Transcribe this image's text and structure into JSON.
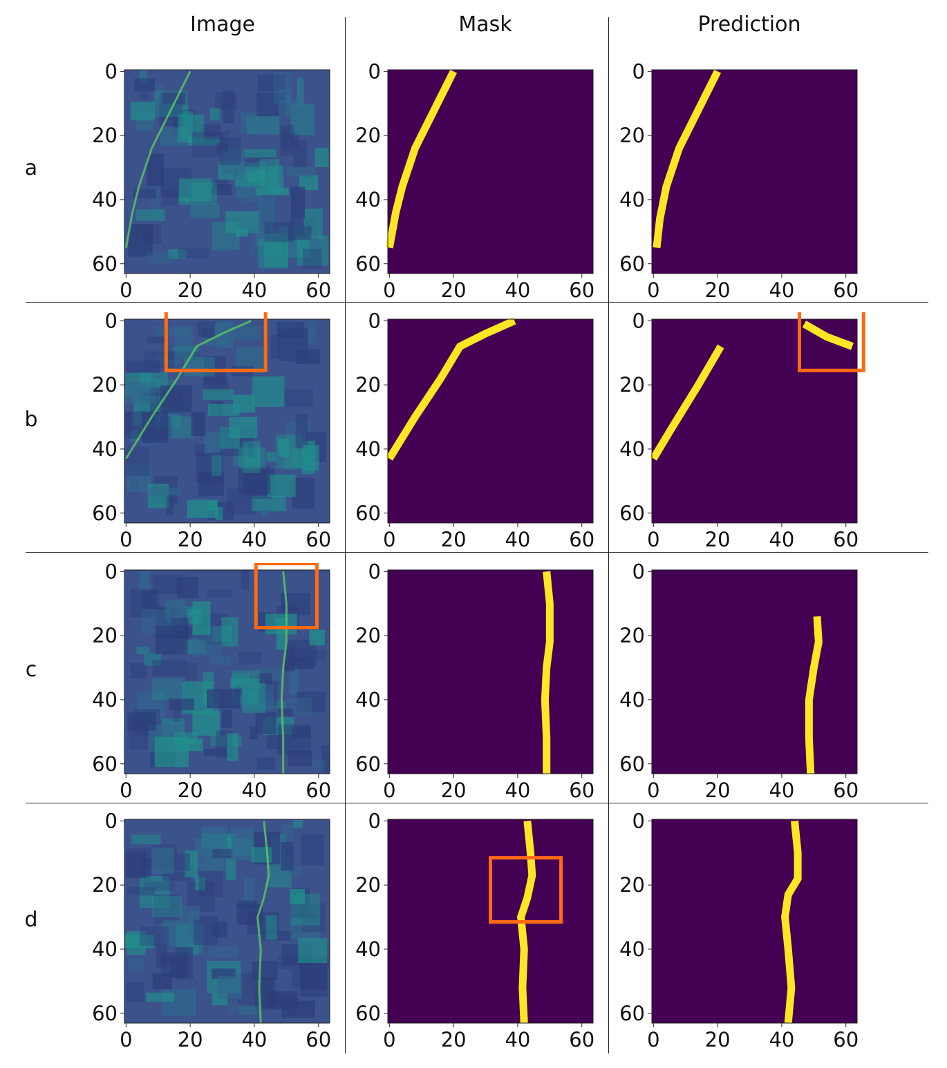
{
  "columns": [
    "Image",
    "Mask",
    "Prediction"
  ],
  "rows": [
    "a",
    "b",
    "c",
    "d"
  ],
  "axis": {
    "range": [
      0,
      63
    ],
    "x_ticks": [
      "0",
      "20",
      "40",
      "60"
    ],
    "y_ticks": [
      "0",
      "20",
      "40",
      "60"
    ]
  },
  "colors": {
    "background_class": "#440154",
    "line_class": "#fde725",
    "highlight_box": "#ff6a13",
    "image_base": "#3b528b",
    "image_mid": "#21918c",
    "image_bright": "#5ec962"
  },
  "highlight_boxes": [
    {
      "row": "b",
      "column": "Image",
      "x": [
        13,
        44
      ],
      "y": [
        -3,
        16
      ]
    },
    {
      "row": "b",
      "column": "Prediction",
      "x": [
        46,
        66
      ],
      "y": [
        -3,
        16
      ]
    },
    {
      "row": "c",
      "column": "Image",
      "x": [
        41,
        60
      ],
      "y": [
        -2,
        18
      ]
    },
    {
      "row": "d",
      "column": "Mask",
      "x": [
        32,
        54
      ],
      "y": [
        12,
        32
      ]
    }
  ],
  "segments": {
    "a": {
      "mask": [
        [
          20,
          0
        ],
        [
          14,
          12
        ],
        [
          8,
          24
        ],
        [
          4,
          36
        ],
        [
          2,
          44
        ],
        [
          0,
          55
        ]
      ],
      "prediction": [
        [
          20,
          0
        ],
        [
          14,
          12
        ],
        [
          8,
          24
        ],
        [
          4,
          36
        ],
        [
          2,
          46
        ],
        [
          1,
          55
        ]
      ]
    },
    "b": {
      "mask": [
        [
          39,
          0
        ],
        [
          30,
          4
        ],
        [
          22,
          8
        ],
        [
          16,
          18
        ],
        [
          8,
          30
        ],
        [
          0,
          43
        ]
      ],
      "prediction_parts": [
        [
          [
            21,
            8
          ],
          [
            14,
            20
          ],
          [
            6,
            33
          ],
          [
            0,
            43
          ]
        ],
        [
          [
            47,
            1
          ],
          [
            54,
            5
          ],
          [
            62,
            8
          ]
        ]
      ]
    },
    "c": {
      "mask": [
        [
          49,
          0
        ],
        [
          50,
          10
        ],
        [
          50,
          22
        ],
        [
          49,
          30
        ],
        [
          48.5,
          40
        ],
        [
          49,
          52
        ],
        [
          49,
          63
        ]
      ],
      "prediction": [
        [
          51,
          14
        ],
        [
          51.5,
          22
        ],
        [
          50,
          30
        ],
        [
          48.5,
          40
        ],
        [
          48.5,
          52
        ],
        [
          49,
          63
        ]
      ]
    },
    "d": {
      "mask": [
        [
          43,
          0
        ],
        [
          44,
          10
        ],
        [
          44.5,
          17
        ],
        [
          43,
          24
        ],
        [
          41,
          30
        ],
        [
          42,
          40
        ],
        [
          41.5,
          52
        ],
        [
          42,
          63
        ]
      ],
      "prediction": [
        [
          44,
          0
        ],
        [
          45,
          10
        ],
        [
          45,
          18
        ],
        [
          42,
          23
        ],
        [
          41,
          30
        ],
        [
          42,
          40
        ],
        [
          43,
          52
        ],
        [
          42,
          63
        ]
      ]
    }
  }
}
